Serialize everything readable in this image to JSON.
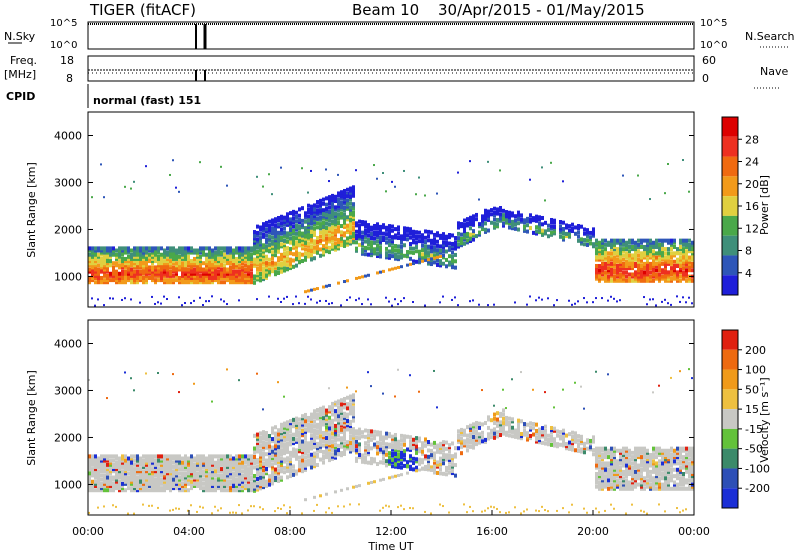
{
  "header": {
    "station": "TIGER (fitACF)",
    "beam": "Beam 10",
    "date_range": "30/Apr/2015 - 01/May/2015"
  },
  "strip_panels": {
    "nsky_label": "N.Sky",
    "nsearch_label": "N.Search",
    "nsky_ticks": [
      "10^5",
      "10^0"
    ],
    "nsearch_ticks": [
      "10^5",
      "10^0"
    ],
    "freq_label": "Freq.",
    "freq_unit": "[MHz]",
    "freq_ticks": [
      "18",
      "8"
    ],
    "nave_label": "Nave",
    "nave_ticks": [
      "60",
      "0"
    ],
    "cpid_label": "CPID",
    "cpid_text": "normal (fast) 151"
  },
  "colors": {
    "power_scale": [
      "#1f1fd9",
      "#2e56b8",
      "#3f8f7a",
      "#4aa84a",
      "#e0d040",
      "#f29a1a",
      "#f06a10",
      "#ee3020",
      "#dd0000"
    ],
    "velocity_scale": [
      "#1b2fd6",
      "#2d4fb6",
      "#3b8a6a",
      "#63c23a",
      "#c8c8c4",
      "#eec040",
      "#f09a1a",
      "#ee6a10",
      "#e02010"
    ]
  },
  "chart_data": [
    {
      "type": "heatmap",
      "name": "power",
      "xlabel": "",
      "ylabel": "Slant Range [km]",
      "x_ticks": [
        "00:00",
        "04:00",
        "08:00",
        "12:00",
        "16:00",
        "20:00",
        "00:00"
      ],
      "y_ticks": [
        "1000",
        "2000",
        "3000",
        "4000"
      ],
      "ylim": [
        350,
        4500
      ],
      "colorbar_label": "Power [dB]",
      "colorbar_ticks": [
        "4",
        "8",
        "12",
        "16",
        "20",
        "24",
        "28"
      ],
      "colorbar_range": [
        0,
        32
      ]
    },
    {
      "type": "heatmap",
      "name": "velocity",
      "xlabel": "Time UT",
      "ylabel": "Slant Range [km]",
      "x_ticks": [
        "00:00",
        "04:00",
        "08:00",
        "12:00",
        "16:00",
        "20:00",
        "00:00"
      ],
      "y_ticks": [
        "1000",
        "2000",
        "3000",
        "4000"
      ],
      "ylim": [
        350,
        4500
      ],
      "colorbar_label": "Velocity [m s⁻¹]",
      "colorbar_ticks": [
        "200",
        "100",
        "50",
        "15",
        "-15",
        "-50",
        "-100",
        "-200"
      ]
    }
  ]
}
